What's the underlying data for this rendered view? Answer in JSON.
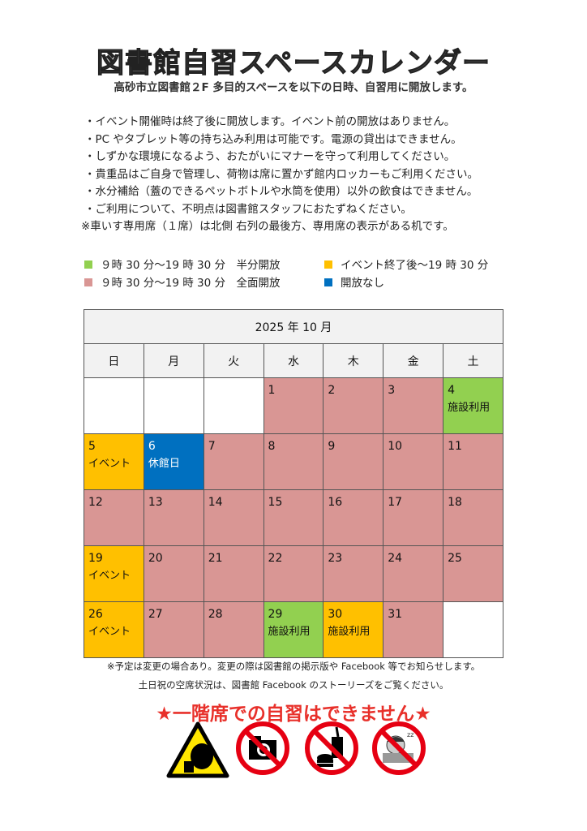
{
  "title": "図書館自習スペースカレンダー",
  "subtitle": "高砂市立図書館２F 多目的スペースを以下の日時、自習用に開放します。",
  "notes": [
    "・イベント開催時は終了後に開放します。イベント前の開放はありません。",
    "・PC やタブレット等の持ち込み利用は可能です。電源の貸出はできません。",
    "・しずかな環境になるよう、おたがいにマナーを守って利用してください。",
    "・貴重品はご自身で管理し、荷物は席に置かず館内ロッカーもご利用ください。",
    "・水分補給（蓋のできるペットボトルや水筒を使用）以外の飲食はできません。",
    "・ご利用について、不明点は図書館スタッフにおたずねください。",
    "※車いす専用席（１席）は北側 右列の最後方、専用席の表示がある机です。"
  ],
  "legend": [
    {
      "label": "９時 30 分～19 時 30 分　半分開放",
      "color": "#92d050"
    },
    {
      "label": "イベント終了後～19 時 30 分",
      "color": "#ffc000"
    },
    {
      "label": "９時 30 分～19 時 30 分　全面開放",
      "color": "#d99694"
    },
    {
      "label": "開放なし",
      "color": "#0070c0"
    }
  ],
  "calendar": {
    "month": "2025 年 10 月",
    "weekdays": [
      "日",
      "月",
      "火",
      "水",
      "木",
      "金",
      "土"
    ],
    "colors": {
      "full": "#d99694",
      "half": "#92d050",
      "event": "#ffc000",
      "closed": "#0070c0",
      "none": "#ffffff"
    },
    "weeks": [
      [
        {
          "d": "",
          "s": "none"
        },
        {
          "d": "",
          "s": "none"
        },
        {
          "d": "",
          "s": "none"
        },
        {
          "d": "1",
          "s": "full"
        },
        {
          "d": "2",
          "s": "full"
        },
        {
          "d": "3",
          "s": "full"
        },
        {
          "d": "4",
          "s": "half",
          "note": "施設利用"
        }
      ],
      [
        {
          "d": "5",
          "s": "event",
          "note": "イベント"
        },
        {
          "d": "6",
          "s": "closed",
          "note": "休館日"
        },
        {
          "d": "7",
          "s": "full"
        },
        {
          "d": "8",
          "s": "full"
        },
        {
          "d": "9",
          "s": "full"
        },
        {
          "d": "10",
          "s": "full"
        },
        {
          "d": "11",
          "s": "full"
        }
      ],
      [
        {
          "d": "12",
          "s": "full"
        },
        {
          "d": "13",
          "s": "full"
        },
        {
          "d": "14",
          "s": "full"
        },
        {
          "d": "15",
          "s": "full"
        },
        {
          "d": "16",
          "s": "full"
        },
        {
          "d": "17",
          "s": "full"
        },
        {
          "d": "18",
          "s": "full"
        }
      ],
      [
        {
          "d": "19",
          "s": "event",
          "note": "イベント"
        },
        {
          "d": "20",
          "s": "full"
        },
        {
          "d": "21",
          "s": "full"
        },
        {
          "d": "22",
          "s": "full"
        },
        {
          "d": "23",
          "s": "full"
        },
        {
          "d": "24",
          "s": "full"
        },
        {
          "d": "25",
          "s": "full"
        }
      ],
      [
        {
          "d": "26",
          "s": "event",
          "note": "イベント"
        },
        {
          "d": "27",
          "s": "full"
        },
        {
          "d": "28",
          "s": "full"
        },
        {
          "d": "29",
          "s": "half",
          "note": "施設利用"
        },
        {
          "d": "30",
          "s": "event",
          "note": "施設利用"
        },
        {
          "d": "31",
          "s": "full"
        },
        {
          "d": "",
          "s": "none"
        }
      ]
    ]
  },
  "footer_note1": "※予定は変更の場合あり。変更の際は図書館の掲示版や Facebook 等でお知らせします。",
  "footer_note2": "土日祝の空席状況は、図書館 Facebook のストーリーズをご覧ください。",
  "warning": "★一階席での自習はできません★",
  "icons": [
    "no-talking-warning-icon",
    "no-camera-icon",
    "no-food-drink-icon",
    "no-sleeping-icon"
  ]
}
